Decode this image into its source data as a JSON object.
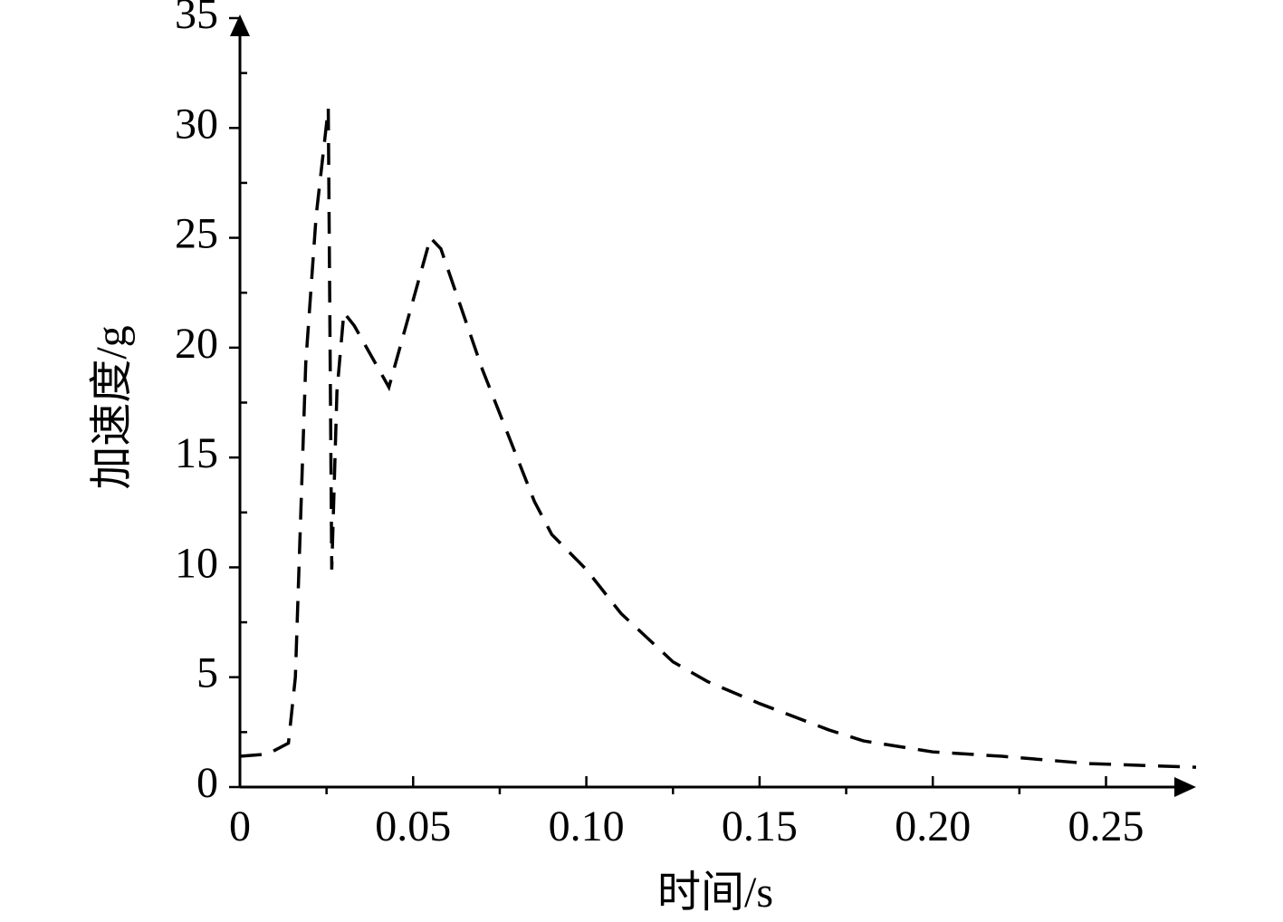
{
  "chart_data": {
    "type": "line",
    "x_label": "时间/s",
    "y_label": "加速度/g",
    "x": [
      0,
      0.008,
      0.014,
      0.016,
      0.019,
      0.022,
      0.0255,
      0.0265,
      0.028,
      0.03,
      0.033,
      0.043,
      0.055,
      0.058,
      0.07,
      0.085,
      0.09,
      0.1,
      0.11,
      0.125,
      0.135,
      0.15,
      0.17,
      0.18,
      0.2,
      0.22,
      0.245,
      0.276
    ],
    "series": [
      {
        "color": "#000000",
        "dash": true,
        "values": [
          1.4,
          1.5,
          2.0,
          5,
          19.3,
          26,
          30.9,
          9.9,
          18,
          21.6,
          21,
          18.2,
          25,
          24.5,
          19,
          13,
          11.5,
          9.9,
          7.9,
          5.7,
          4.8,
          3.8,
          2.6,
          2.1,
          1.6,
          1.4,
          1.07,
          0.9
        ]
      }
    ],
    "xlim": [
      0,
      0.276
    ],
    "ylim": [
      0,
      35
    ],
    "xticks": [
      0,
      0.05,
      {
        "value": 0.1,
        "label": "0.10"
      },
      0.15,
      {
        "value": 0.2,
        "label": "0.20"
      },
      0.25
    ],
    "yticks": [
      0,
      5,
      10,
      15,
      20,
      25,
      30,
      35
    ]
  }
}
